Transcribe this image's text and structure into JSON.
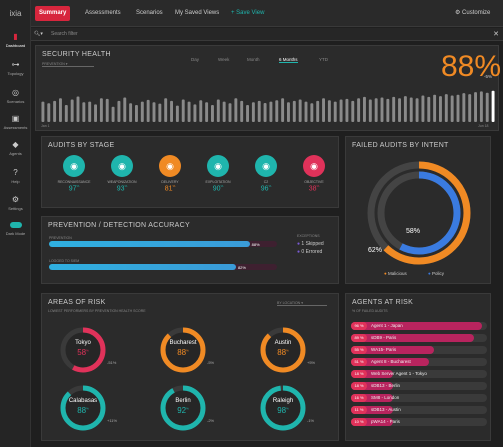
{
  "app": {
    "logo": "ixia",
    "customize": "Customize"
  },
  "tabs": [
    {
      "label": "Summary"
    },
    {
      "label": "Assessments"
    },
    {
      "label": "Scenarios"
    },
    {
      "label": "My Saved Views"
    },
    {
      "label": "+ Save View"
    }
  ],
  "sidebar": [
    {
      "label": "Dashboard"
    },
    {
      "label": "Topology"
    },
    {
      "label": "Scenarios"
    },
    {
      "label": "Assessments"
    },
    {
      "label": "Agents"
    },
    {
      "label": "Help"
    },
    {
      "label": "Settings"
    },
    {
      "label": "Dark Mode"
    }
  ],
  "search": {
    "placeholder": "Search filter"
  },
  "health": {
    "title": "SECURITY HEALTH",
    "filter": "PREVENTION",
    "ranges": [
      "Day",
      "Week",
      "Month",
      "6 Months",
      "YTD"
    ],
    "selected": "6 Months",
    "score": "88",
    "unit": "%",
    "delta": "-5%",
    "start": "Jan 1",
    "end": "Jun 18",
    "values": [
      0.6,
      0.55,
      0.62,
      0.7,
      0.5,
      0.66,
      0.75,
      0.58,
      0.6,
      0.52,
      0.7,
      0.68,
      0.45,
      0.62,
      0.72,
      0.55,
      0.5,
      0.6,
      0.65,
      0.58,
      0.54,
      0.7,
      0.62,
      0.48,
      0.66,
      0.6,
      0.52,
      0.64,
      0.58,
      0.5,
      0.66,
      0.6,
      0.55,
      0.7,
      0.62,
      0.5,
      0.58,
      0.62,
      0.56,
      0.6,
      0.64,
      0.7,
      0.58,
      0.62,
      0.66,
      0.6,
      0.55,
      0.62,
      0.7,
      0.64,
      0.6,
      0.66,
      0.68,
      0.62,
      0.7,
      0.74,
      0.66,
      0.7,
      0.72,
      0.68,
      0.74,
      0.7,
      0.76,
      0.72,
      0.7,
      0.78,
      0.74,
      0.8,
      0.76,
      0.82,
      0.78,
      0.8,
      0.85,
      0.82,
      0.88,
      0.9,
      0.86,
      0.92
    ]
  },
  "audits": {
    "title": "AUDITS BY STAGE",
    "stages": [
      {
        "label": "RECONNAISSANCE",
        "value": "97",
        "color": "#1fb5ad"
      },
      {
        "label": "WEAPONIZATION",
        "value": "93",
        "color": "#1fb5ad"
      },
      {
        "label": "DELIVERY",
        "value": "81",
        "color": "#f08a24"
      },
      {
        "label": "EXPLOITATION",
        "value": "90",
        "color": "#1fb5ad"
      },
      {
        "label": "C2",
        "value": "96",
        "color": "#1fb5ad"
      },
      {
        "label": "OBJECTIVE",
        "value": "38",
        "color": "#e0325a"
      }
    ]
  },
  "accuracy": {
    "title": "PREVENTION / DETECTION ACCURACY",
    "rows": [
      {
        "label": "PREVENTION",
        "value": 0.88,
        "text": "88%"
      },
      {
        "label": "LOGGED TO SIEM",
        "value": 0.82,
        "text": "82%"
      }
    ],
    "exceptions": "EXCEPTIONS",
    "skipped": "1  Skipped",
    "errored": "0  Errored"
  },
  "failed": {
    "title": "FAILED AUDITS BY INTENT",
    "inner": "58%",
    "outer": "62%",
    "legend": [
      "Malicious",
      "Policy"
    ]
  },
  "risk": {
    "title": "AREAS OF RISK",
    "subtitle": "LOWEST PERFORMERS BY PREVENTION HEALTH SCORE",
    "dropdown": "BY LOCATION",
    "items": [
      {
        "name": "Tokyo",
        "value": "58",
        "delta": "-51%",
        "color": "#e0325a",
        "frac": 0.58
      },
      {
        "name": "Bucharest",
        "value": "88",
        "delta": "-5%",
        "color": "#f08a24",
        "frac": 0.88
      },
      {
        "name": "Austin",
        "value": "88",
        "delta": "+5%",
        "color": "#f08a24",
        "frac": 0.88
      },
      {
        "name": "Calabasas",
        "value": "88",
        "delta": "+11%",
        "color": "#1fb5ad",
        "frac": 0.88
      },
      {
        "name": "Berlin",
        "value": "92",
        "delta": "-2%",
        "color": "#1fb5ad",
        "frac": 0.92
      },
      {
        "name": "Raleigh",
        "value": "98",
        "delta": "-1%",
        "color": "#1fb5ad",
        "frac": 0.98
      }
    ]
  },
  "agents": {
    "title": "AGENTS AT RISK",
    "subtitle": "% OF FAILED AUDITS",
    "rows": [
      {
        "pct": "96 %",
        "name": "Agent 1 - Japan",
        "v": 0.96
      },
      {
        "pct": "89 %",
        "name": "sDB9 - Paris",
        "v": 0.89
      },
      {
        "pct": "55 %",
        "name": "WA15- Paris",
        "v": 0.55
      },
      {
        "pct": "51 %",
        "name": "Agent 8 - Bucharest",
        "v": 0.51
      },
      {
        "pct": "18 %",
        "name": "Web Server Agent 1 - Tokyo",
        "v": 0.18
      },
      {
        "pct": "18 %",
        "name": "sDB13 - Berlin",
        "v": 0.18
      },
      {
        "pct": "16 %",
        "name": "SM8 - London",
        "v": 0.16
      },
      {
        "pct": "11 %",
        "name": "sDB13 - Austin",
        "v": 0.11
      },
      {
        "pct": "10 %",
        "name": "pWA14 - Paris",
        "v": 0.1
      }
    ]
  }
}
